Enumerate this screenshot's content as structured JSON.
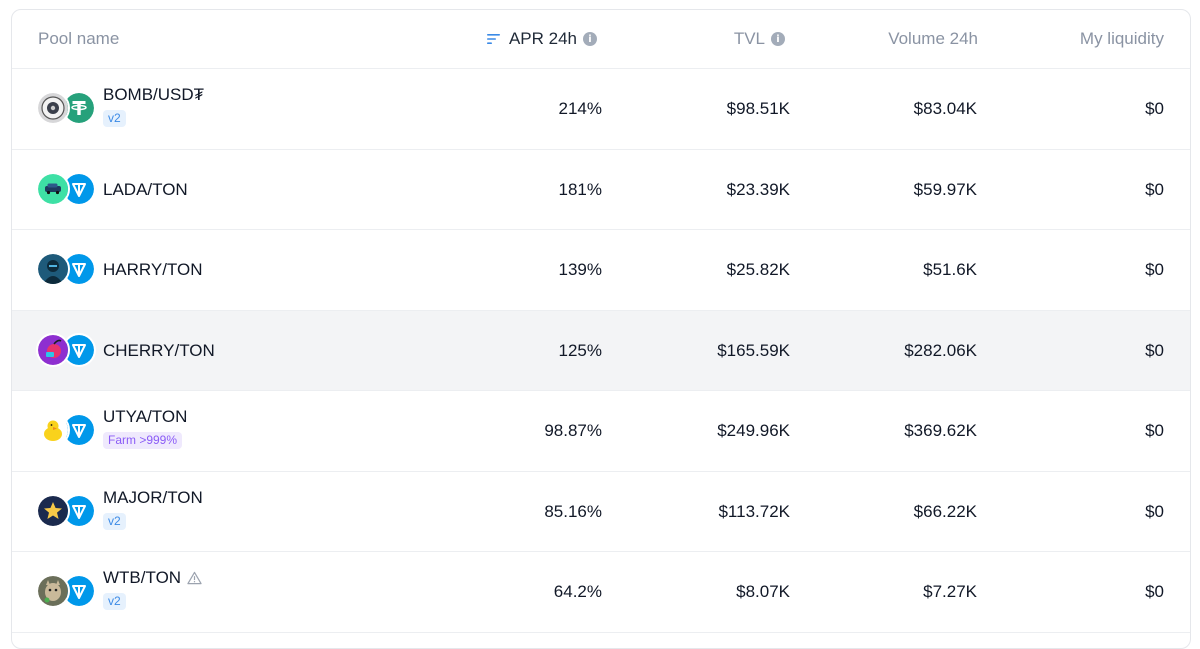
{
  "table": {
    "headers": {
      "pool_name": "Pool name",
      "apr": "APR 24h",
      "tvl": "TVL",
      "volume": "Volume 24h",
      "my_liquidity": "My liquidity"
    },
    "rows": [
      {
        "name": "BOMB/USD₮",
        "badge": "v2",
        "apr": "214%",
        "tvl": "$98.51K",
        "volume": "$83.04K",
        "liquidity": "$0",
        "icon_a": "bomb-token-icon",
        "icon_b": "usdt-token-icon"
      },
      {
        "name": "LADA/TON",
        "badge": "",
        "apr": "181%",
        "tvl": "$23.39K",
        "volume": "$59.97K",
        "liquidity": "$0",
        "icon_a": "lada-token-icon",
        "icon_b": "ton-token-icon"
      },
      {
        "name": "HARRY/TON",
        "badge": "",
        "apr": "139%",
        "tvl": "$25.82K",
        "volume": "$51.6K",
        "liquidity": "$0",
        "icon_a": "harry-token-icon",
        "icon_b": "ton-token-icon"
      },
      {
        "name": "CHERRY/TON",
        "badge": "",
        "apr": "125%",
        "tvl": "$165.59K",
        "volume": "$282.06K",
        "liquidity": "$0",
        "icon_a": "cherry-token-icon",
        "icon_b": "ton-token-icon"
      },
      {
        "name": "UTYA/TON",
        "badge": "Farm >999%",
        "apr": "98.87%",
        "tvl": "$249.96K",
        "volume": "$369.62K",
        "liquidity": "$0",
        "icon_a": "utya-token-icon",
        "icon_b": "ton-token-icon"
      },
      {
        "name": "MAJOR/TON",
        "badge": "v2",
        "apr": "85.16%",
        "tvl": "$113.72K",
        "volume": "$66.22K",
        "liquidity": "$0",
        "icon_a": "major-token-icon",
        "icon_b": "ton-token-icon"
      },
      {
        "name": "WTB/TON",
        "badge": "v2",
        "apr": "64.2%",
        "tvl": "$8.07K",
        "volume": "$7.27K",
        "liquidity": "$0",
        "icon_a": "wtb-token-icon",
        "icon_b": "ton-token-icon"
      }
    ]
  },
  "colors": {
    "ton_blue": "#0098ea",
    "usdt_green": "#26a17b",
    "v2_badge_text": "#3b8ae6",
    "farm_badge_text": "#8b5cf6",
    "header_text": "#8a93a3",
    "highlight_row": "#f3f4f6"
  }
}
